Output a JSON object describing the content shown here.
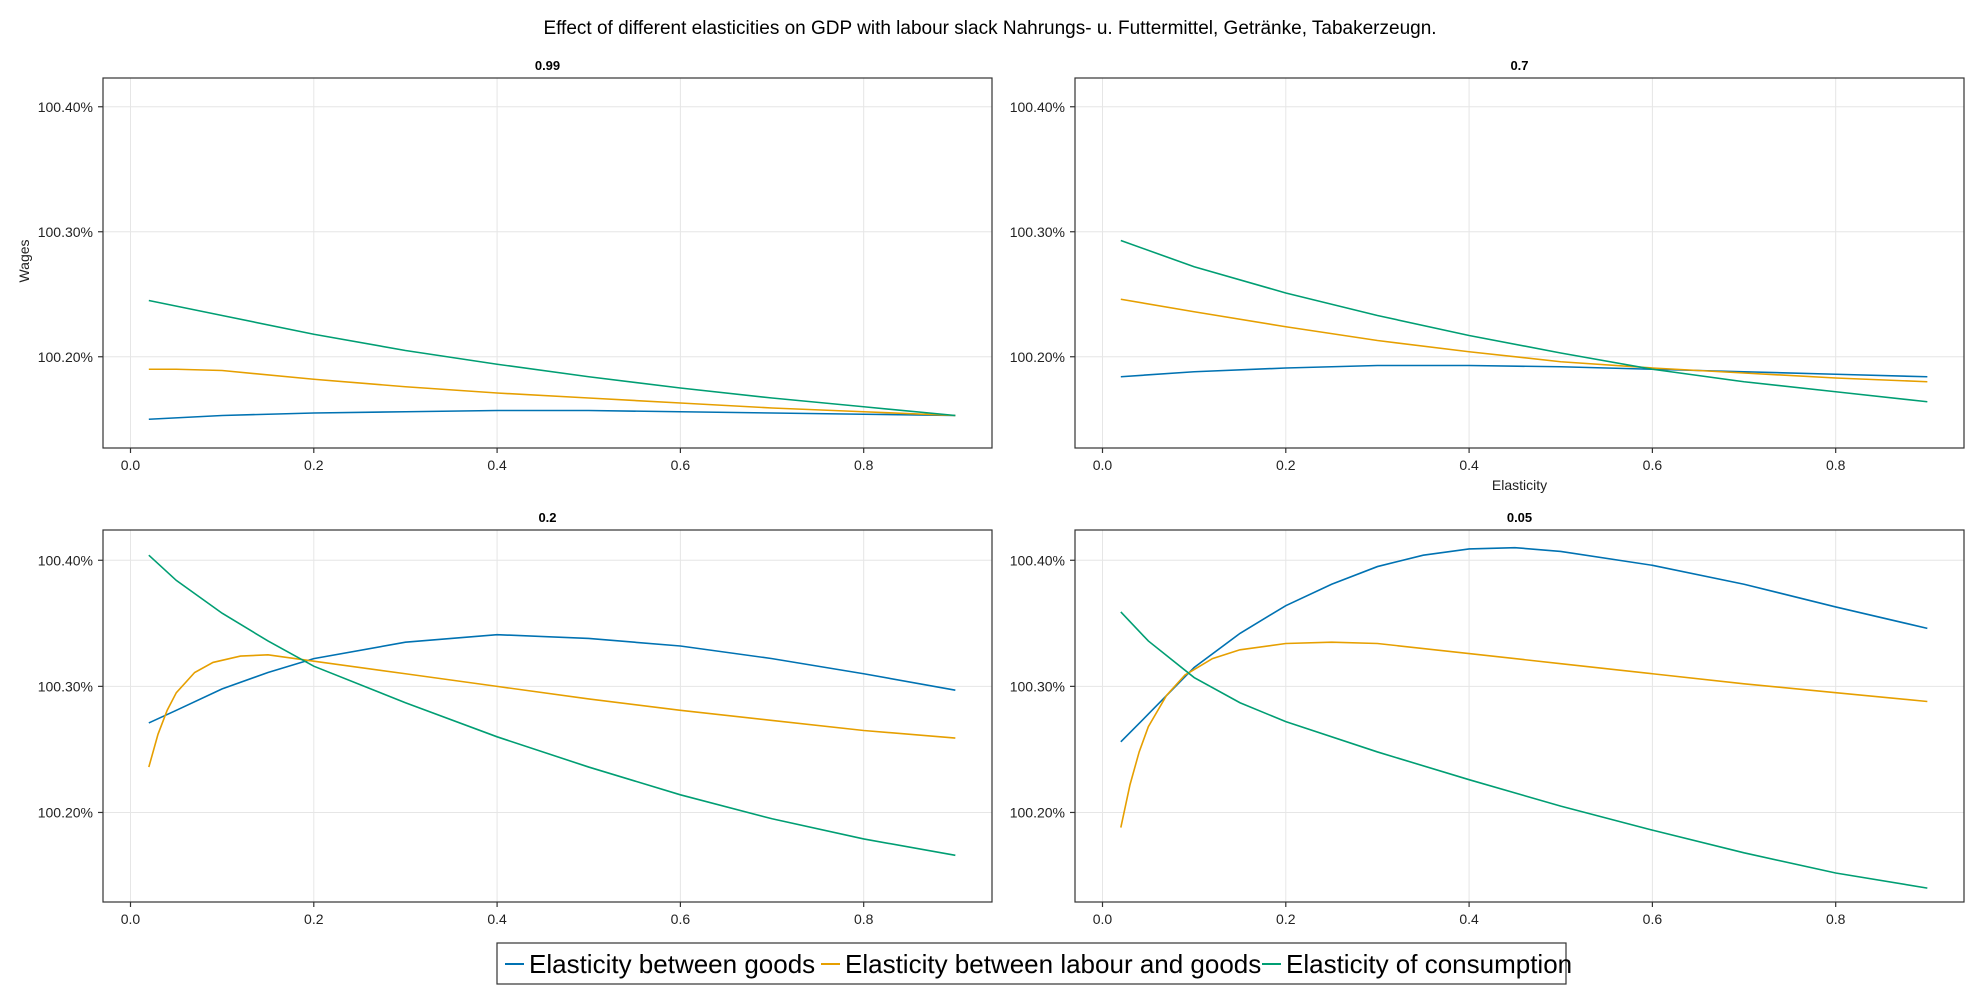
{
  "figure": {
    "title": "Effect of different elasticities on GDP with labour slack Nahrungs- u. Futtermittel, Getränke, Tabakerzeugn."
  },
  "legend": {
    "placement": "bottom-center",
    "items": [
      {
        "label": "Elasticity between goods",
        "color": "#0072B2"
      },
      {
        "label": "Elasticity between labour and goods",
        "color": "#E69F00"
      },
      {
        "label": "Elasticity of consumption",
        "color": "#009E73"
      }
    ]
  },
  "chart_data": [
    {
      "type": "line",
      "title": "0.99",
      "xlabel": "",
      "ylabel": "Wages",
      "xlim": [
        -0.03,
        0.94
      ],
      "ylim": [
        1.00127,
        1.00423
      ],
      "xticks": [
        0.0,
        0.2,
        0.4,
        0.6,
        0.8
      ],
      "xtick_labels": [
        "0.0",
        "0.2",
        "0.4",
        "0.6",
        "0.8"
      ],
      "yticks": [
        1.002,
        1.003,
        1.004
      ],
      "ytick_labels": [
        "100.20%",
        "100.30%",
        "100.40%"
      ],
      "grid": true,
      "series": [
        {
          "name": "Elasticity between goods",
          "color": "#0072B2",
          "x": [
            0.02,
            0.1,
            0.2,
            0.3,
            0.4,
            0.5,
            0.6,
            0.7,
            0.8,
            0.9
          ],
          "y": [
            1.0015,
            1.00153,
            1.00155,
            1.00156,
            1.00157,
            1.00157,
            1.00156,
            1.00155,
            1.00154,
            1.00153
          ]
        },
        {
          "name": "Elasticity between labour and goods",
          "color": "#E69F00",
          "x": [
            0.02,
            0.05,
            0.1,
            0.2,
            0.3,
            0.4,
            0.5,
            0.6,
            0.7,
            0.8,
            0.9
          ],
          "y": [
            1.0019,
            1.0019,
            1.00189,
            1.00182,
            1.00176,
            1.00171,
            1.00167,
            1.00163,
            1.00159,
            1.00156,
            1.00153
          ]
        },
        {
          "name": "Elasticity of consumption",
          "color": "#009E73",
          "x": [
            0.02,
            0.1,
            0.2,
            0.3,
            0.4,
            0.5,
            0.6,
            0.7,
            0.8,
            0.9
          ],
          "y": [
            1.00245,
            1.00233,
            1.00218,
            1.00205,
            1.00194,
            1.00184,
            1.00175,
            1.00167,
            1.0016,
            1.00153
          ]
        }
      ]
    },
    {
      "type": "line",
      "title": "0.7",
      "xlabel": "Elasticity",
      "ylabel": "",
      "xlim": [
        -0.03,
        0.94
      ],
      "ylim": [
        1.00127,
        1.00423
      ],
      "xticks": [
        0.0,
        0.2,
        0.4,
        0.6,
        0.8
      ],
      "xtick_labels": [
        "0.0",
        "0.2",
        "0.4",
        "0.6",
        "0.8"
      ],
      "yticks": [
        1.002,
        1.003,
        1.004
      ],
      "ytick_labels": [
        "100.20%",
        "100.30%",
        "100.40%"
      ],
      "grid": true,
      "series": [
        {
          "name": "Elasticity between goods",
          "color": "#0072B2",
          "x": [
            0.02,
            0.1,
            0.2,
            0.3,
            0.4,
            0.5,
            0.6,
            0.7,
            0.8,
            0.9
          ],
          "y": [
            1.00184,
            1.00188,
            1.00191,
            1.00193,
            1.00193,
            1.00192,
            1.0019,
            1.00188,
            1.00186,
            1.00184
          ]
        },
        {
          "name": "Elasticity between labour and goods",
          "color": "#E69F00",
          "x": [
            0.02,
            0.1,
            0.2,
            0.3,
            0.4,
            0.5,
            0.6,
            0.7,
            0.8,
            0.9
          ],
          "y": [
            1.00246,
            1.00236,
            1.00224,
            1.00213,
            1.00204,
            1.00196,
            1.00191,
            1.00187,
            1.00183,
            1.0018
          ]
        },
        {
          "name": "Elasticity of consumption",
          "color": "#009E73",
          "x": [
            0.02,
            0.1,
            0.2,
            0.3,
            0.4,
            0.5,
            0.6,
            0.7,
            0.8,
            0.9
          ],
          "y": [
            1.00293,
            1.00272,
            1.00251,
            1.00233,
            1.00217,
            1.00203,
            1.0019,
            1.0018,
            1.00172,
            1.00164
          ]
        }
      ]
    },
    {
      "type": "line",
      "title": "0.2",
      "xlabel": "",
      "ylabel": "",
      "xlim": [
        -0.03,
        0.94
      ],
      "ylim": [
        1.00129,
        1.00424
      ],
      "xticks": [
        0.0,
        0.2,
        0.4,
        0.6,
        0.8
      ],
      "xtick_labels": [
        "0.0",
        "0.2",
        "0.4",
        "0.6",
        "0.8"
      ],
      "yticks": [
        1.002,
        1.003,
        1.004
      ],
      "ytick_labels": [
        "100.20%",
        "100.30%",
        "100.40%"
      ],
      "grid": true,
      "series": [
        {
          "name": "Elasticity between goods",
          "color": "#0072B2",
          "x": [
            0.02,
            0.05,
            0.1,
            0.15,
            0.2,
            0.3,
            0.4,
            0.5,
            0.6,
            0.7,
            0.8,
            0.9
          ],
          "y": [
            1.00271,
            1.00281,
            1.00298,
            1.00311,
            1.00322,
            1.00335,
            1.00341,
            1.00338,
            1.00332,
            1.00322,
            1.0031,
            1.00297
          ]
        },
        {
          "name": "Elasticity between labour and goods",
          "color": "#E69F00",
          "x": [
            0.02,
            0.03,
            0.04,
            0.05,
            0.07,
            0.09,
            0.12,
            0.15,
            0.2,
            0.3,
            0.4,
            0.5,
            0.6,
            0.7,
            0.8,
            0.9
          ],
          "y": [
            1.00236,
            1.00262,
            1.00281,
            1.00295,
            1.00311,
            1.00319,
            1.00324,
            1.00325,
            1.0032,
            1.0031,
            1.003,
            1.0029,
            1.00281,
            1.00273,
            1.00265,
            1.00259
          ]
        },
        {
          "name": "Elasticity of consumption",
          "color": "#009E73",
          "x": [
            0.02,
            0.05,
            0.1,
            0.15,
            0.2,
            0.3,
            0.4,
            0.5,
            0.6,
            0.7,
            0.8,
            0.9
          ],
          "y": [
            1.00404,
            1.00384,
            1.00358,
            1.00336,
            1.00316,
            1.00287,
            1.0026,
            1.00236,
            1.00214,
            1.00195,
            1.00179,
            1.00166
          ]
        }
      ]
    },
    {
      "type": "line",
      "title": "0.05",
      "xlabel": "",
      "ylabel": "",
      "xlim": [
        -0.03,
        0.94
      ],
      "ylim": [
        1.00129,
        1.00424
      ],
      "xticks": [
        0.0,
        0.2,
        0.4,
        0.6,
        0.8
      ],
      "xtick_labels": [
        "0.0",
        "0.2",
        "0.4",
        "0.6",
        "0.8"
      ],
      "yticks": [
        1.002,
        1.003,
        1.004
      ],
      "ytick_labels": [
        "100.20%",
        "100.30%",
        "100.40%"
      ],
      "grid": true,
      "series": [
        {
          "name": "Elasticity between goods",
          "color": "#0072B2",
          "x": [
            0.02,
            0.05,
            0.1,
            0.15,
            0.2,
            0.25,
            0.3,
            0.35,
            0.4,
            0.45,
            0.5,
            0.6,
            0.7,
            0.8,
            0.9
          ],
          "y": [
            1.00256,
            1.00278,
            1.00315,
            1.00342,
            1.00364,
            1.00381,
            1.00395,
            1.00404,
            1.00409,
            1.0041,
            1.00407,
            1.00396,
            1.00381,
            1.00363,
            1.00346
          ]
        },
        {
          "name": "Elasticity between labour and goods",
          "color": "#E69F00",
          "x": [
            0.02,
            0.03,
            0.04,
            0.05,
            0.07,
            0.09,
            0.12,
            0.15,
            0.2,
            0.25,
            0.3,
            0.4,
            0.5,
            0.6,
            0.7,
            0.8,
            0.9
          ],
          "y": [
            1.00188,
            1.00222,
            1.00248,
            1.00268,
            1.00293,
            1.00309,
            1.00322,
            1.00329,
            1.00334,
            1.00335,
            1.00334,
            1.00326,
            1.00318,
            1.0031,
            1.00302,
            1.00295,
            1.00288
          ]
        },
        {
          "name": "Elasticity of consumption",
          "color": "#009E73",
          "x": [
            0.02,
            0.05,
            0.1,
            0.15,
            0.2,
            0.3,
            0.4,
            0.5,
            0.6,
            0.7,
            0.8,
            0.9
          ],
          "y": [
            1.00359,
            1.00336,
            1.00307,
            1.00287,
            1.00272,
            1.00248,
            1.00226,
            1.00205,
            1.00186,
            1.00168,
            1.00152,
            1.0014
          ]
        }
      ]
    }
  ]
}
